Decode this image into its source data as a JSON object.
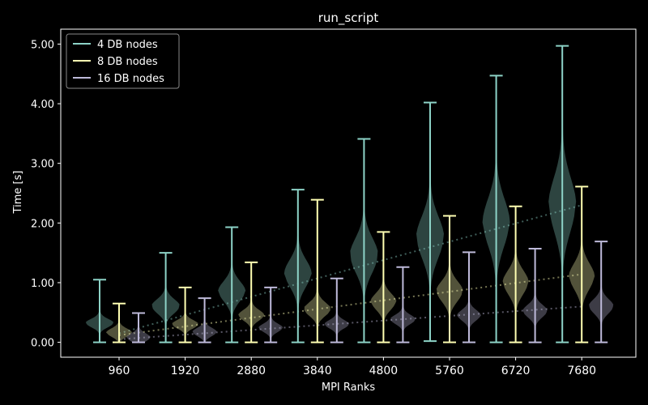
{
  "chart_data": {
    "type": "violin",
    "title": "run_script",
    "xlabel": "MPI Ranks",
    "ylabel": "Time [s]",
    "categories": [
      "960",
      "1920",
      "2880",
      "3840",
      "4800",
      "5760",
      "6720",
      "7680"
    ],
    "ylim": [
      -0.25,
      5.25
    ],
    "yticks": [
      0,
      1,
      2,
      3,
      4,
      5
    ],
    "ytick_labels": [
      "0.00",
      "1.00",
      "2.00",
      "3.00",
      "4.00",
      "5.00"
    ],
    "grid": false,
    "legend_position": "top-left",
    "series": [
      {
        "name": "4 DB nodes",
        "color": "#8dd3c7",
        "min": [
          0.0,
          0.0,
          0.0,
          0.0,
          0.0,
          0.02,
          0.0,
          0.0
        ],
        "max": [
          1.05,
          1.5,
          1.93,
          2.56,
          3.41,
          4.02,
          4.47,
          4.97
        ],
        "median": [
          0.32,
          0.6,
          0.85,
          1.15,
          1.45,
          1.75,
          2.0,
          2.3
        ]
      },
      {
        "name": "8 DB nodes",
        "color": "#ffffb3",
        "min": [
          0.0,
          0.0,
          0.0,
          0.0,
          0.0,
          0.0,
          0.0,
          0.0
        ],
        "max": [
          0.65,
          0.92,
          1.34,
          2.39,
          1.85,
          2.12,
          2.28,
          2.61
        ],
        "median": [
          0.16,
          0.3,
          0.45,
          0.55,
          0.68,
          0.85,
          1.0,
          1.1
        ]
      },
      {
        "name": "16 DB nodes",
        "color": "#bebada",
        "min": [
          0.0,
          0.0,
          0.0,
          0.0,
          0.0,
          0.0,
          0.0,
          0.0
        ],
        "max": [
          0.49,
          0.74,
          0.92,
          1.07,
          1.26,
          1.51,
          1.57,
          1.69
        ],
        "median": [
          0.08,
          0.17,
          0.24,
          0.3,
          0.38,
          0.45,
          0.52,
          0.6
        ]
      }
    ],
    "trendlines": [
      {
        "series": "4 DB nodes",
        "from_category": "960",
        "to_category": "7680",
        "y": [
          0.15,
          2.3
        ]
      },
      {
        "series": "8 DB nodes",
        "from_category": "960",
        "to_category": "7680",
        "y": [
          0.12,
          1.14
        ]
      },
      {
        "series": "16 DB nodes",
        "from_category": "960",
        "to_category": "7680",
        "y": [
          0.05,
          0.6
        ]
      }
    ]
  }
}
